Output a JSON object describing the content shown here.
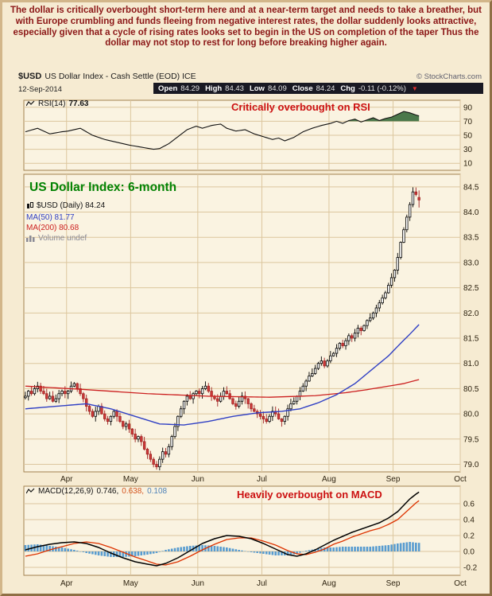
{
  "annotation": {
    "text": "The dollar is critically overbought short-term here and at a near-term target and needs to take a breather, but with Europe crumbling and funds fleeing from negative interest rates, the dollar suddenly looks attractive, especially given that a cycle of rising rates looks set to begin in the US on completion of the taper Thus the dollar may not stop to rest for long before breaking higher again."
  },
  "header": {
    "symbol": "$USD",
    "title": "US Dollar Index - Cash Settle (EOD) ICE",
    "source": "© StockCharts.com",
    "date": "12-Sep-2014",
    "quote": {
      "open_label": "Open",
      "open": "84.29",
      "high_label": "High",
      "high": "84.43",
      "low_label": "Low",
      "low": "84.09",
      "close_label": "Close",
      "close": "84.24",
      "chg_label": "Chg",
      "chg": "-0.11 (-0.12%)"
    }
  },
  "icons": {
    "down_triangle": "▼",
    "indicator_line": "zigzag-line",
    "candlestick": "mini-candles",
    "volume_bars": "mini-histogram"
  },
  "rsi_panel": {
    "legend_name": "RSI(14)",
    "legend_value": "77.63",
    "annotation": "Critically overbought on RSI"
  },
  "main_panel": {
    "title": "US Dollar Index: 6-month",
    "legend_symbol": "$USD (Daily) 84.24",
    "legend_ma50": "MA(50) 81.77",
    "legend_ma200": "MA(200) 80.68",
    "legend_volume": "Volume undef"
  },
  "macd_panel": {
    "legend_name": "MACD(12,26,9)",
    "values": [
      "0.746,",
      "0.638,",
      "0.108"
    ],
    "annotation": "Heavily overbought on MACD"
  },
  "colors": {
    "annotation_text": "#8b1616",
    "alert_red": "#cc1111",
    "title_green": "#028202",
    "page_bg": "#f6ebd2",
    "plot_bg": "#faf3e1",
    "grid": "#dcc69e",
    "plot_border": "#a3824e",
    "axis_text": "#2e2310",
    "candle_up_stroke": "#000000",
    "candle_up_fill": "#ffffff",
    "candle_down_stroke": "#a02222",
    "candle_down_fill": "#cf3a3a",
    "ma50": "#2f3fc4",
    "ma200": "#cc2020",
    "rsi_line": "#111111",
    "rsi_fill": "#3c6e3e",
    "macd_line": "#000000",
    "macd_signal": "#dd3300",
    "macd_hist": "#4f97cf",
    "quote_bar_bg": "#191923"
  },
  "chart_data": {
    "type": "candlestick",
    "title": "US Dollar Index: 6-month",
    "x_months": [
      "Apr",
      "May",
      "Jun",
      "Jul",
      "Aug",
      "Sep",
      "Oct"
    ],
    "month_boundary_slots": [
      14,
      35,
      57,
      78,
      100,
      121,
      143
    ],
    "total_slots": 143,
    "data_days": 130,
    "price": {
      "ylabel_side": "right",
      "ylim": [
        78.85,
        84.75
      ],
      "yticks": [
        84.5,
        84.0,
        83.5,
        83.0,
        82.5,
        82.0,
        81.5,
        81.0,
        80.5,
        80.0,
        79.5,
        79.0
      ],
      "closes": [
        80.35,
        80.45,
        80.4,
        80.5,
        80.55,
        80.45,
        80.4,
        80.3,
        80.35,
        80.25,
        80.3,
        80.4,
        80.45,
        80.4,
        80.45,
        80.55,
        80.6,
        80.5,
        80.4,
        80.3,
        80.15,
        80.05,
        79.95,
        80.05,
        80.15,
        80.0,
        79.9,
        79.85,
        79.95,
        80.05,
        79.95,
        79.85,
        79.75,
        79.8,
        79.7,
        79.6,
        79.5,
        79.55,
        79.45,
        79.3,
        79.2,
        79.1,
        79.0,
        78.95,
        79.1,
        79.25,
        79.2,
        79.35,
        79.55,
        79.75,
        79.95,
        80.1,
        80.25,
        80.35,
        80.3,
        80.4,
        80.45,
        80.4,
        80.5,
        80.55,
        80.45,
        80.35,
        80.3,
        80.25,
        80.35,
        80.45,
        80.4,
        80.3,
        80.2,
        80.15,
        80.25,
        80.35,
        80.3,
        80.2,
        80.1,
        80.05,
        80.0,
        79.95,
        79.9,
        79.85,
        79.95,
        80.05,
        80.0,
        79.9,
        79.85,
        79.95,
        80.1,
        80.2,
        80.25,
        80.35,
        80.45,
        80.55,
        80.65,
        80.75,
        80.8,
        80.9,
        81.0,
        81.05,
        80.95,
        81.05,
        81.15,
        81.2,
        81.3,
        81.4,
        81.35,
        81.45,
        81.55,
        81.5,
        81.6,
        81.7,
        81.65,
        81.75,
        81.85,
        81.9,
        82.0,
        82.1,
        82.2,
        82.3,
        82.4,
        82.55,
        82.7,
        82.85,
        83.1,
        83.4,
        83.65,
        83.9,
        84.15,
        84.4,
        84.35,
        84.24
      ],
      "last_ohlc": {
        "open": 84.29,
        "high": 84.43,
        "low": 84.09,
        "close": 84.24,
        "change": "-0.11 (-0.12%)"
      },
      "ma50_last": 81.77,
      "ma50_keypoints": [
        [
          0,
          80.1
        ],
        [
          10,
          80.15
        ],
        [
          20,
          80.2
        ],
        [
          28,
          80.1
        ],
        [
          36,
          79.95
        ],
        [
          44,
          79.8
        ],
        [
          52,
          79.78
        ],
        [
          60,
          79.85
        ],
        [
          68,
          79.95
        ],
        [
          76,
          80.02
        ],
        [
          84,
          80.05
        ],
        [
          90,
          80.1
        ],
        [
          96,
          80.22
        ],
        [
          102,
          80.38
        ],
        [
          108,
          80.6
        ],
        [
          114,
          80.9
        ],
        [
          119,
          81.15
        ],
        [
          123,
          81.4
        ],
        [
          126,
          81.58
        ],
        [
          129,
          81.77
        ]
      ],
      "ma200_last": 80.68,
      "ma200_keypoints": [
        [
          0,
          80.55
        ],
        [
          20,
          80.48
        ],
        [
          40,
          80.4
        ],
        [
          60,
          80.35
        ],
        [
          80,
          80.33
        ],
        [
          95,
          80.36
        ],
        [
          105,
          80.42
        ],
        [
          112,
          80.48
        ],
        [
          118,
          80.54
        ],
        [
          124,
          80.6
        ],
        [
          129,
          80.68
        ]
      ]
    },
    "rsi": {
      "period": 14,
      "last": 77.63,
      "overbought_level": 70,
      "ylim": [
        0,
        100
      ],
      "yticks": [
        90,
        70,
        50,
        30,
        10
      ],
      "keypoints": [
        [
          0,
          55
        ],
        [
          4,
          60
        ],
        [
          8,
          52
        ],
        [
          12,
          55
        ],
        [
          14,
          56
        ],
        [
          18,
          60
        ],
        [
          22,
          50
        ],
        [
          26,
          44
        ],
        [
          30,
          40
        ],
        [
          34,
          36
        ],
        [
          38,
          33
        ],
        [
          42,
          30
        ],
        [
          44,
          31
        ],
        [
          47,
          38
        ],
        [
          50,
          48
        ],
        [
          53,
          58
        ],
        [
          56,
          63
        ],
        [
          58,
          60
        ],
        [
          61,
          64
        ],
        [
          64,
          66
        ],
        [
          66,
          60
        ],
        [
          69,
          56
        ],
        [
          72,
          58
        ],
        [
          75,
          52
        ],
        [
          78,
          48
        ],
        [
          81,
          44
        ],
        [
          83,
          46
        ],
        [
          85,
          42
        ],
        [
          88,
          47
        ],
        [
          91,
          55
        ],
        [
          94,
          60
        ],
        [
          97,
          64
        ],
        [
          100,
          67
        ],
        [
          102,
          70
        ],
        [
          104,
          67
        ],
        [
          106,
          71
        ],
        [
          108,
          73
        ],
        [
          110,
          69
        ],
        [
          112,
          72
        ],
        [
          114,
          75
        ],
        [
          116,
          71
        ],
        [
          118,
          74
        ],
        [
          120,
          76
        ],
        [
          122,
          80
        ],
        [
          124,
          84
        ],
        [
          126,
          82
        ],
        [
          128,
          79
        ],
        [
          129,
          77.63
        ]
      ]
    },
    "macd": {
      "params": [
        12,
        26,
        9
      ],
      "last": {
        "macd": 0.746,
        "signal": 0.638,
        "hist": 0.108
      },
      "ylim": [
        -0.3,
        0.82
      ],
      "yticks": [
        0.6,
        0.4,
        0.2,
        0.0,
        -0.2
      ],
      "macd_keypoints": [
        [
          0,
          0.02
        ],
        [
          4,
          0.06
        ],
        [
          8,
          0.09
        ],
        [
          12,
          0.11
        ],
        [
          16,
          0.12
        ],
        [
          20,
          0.1
        ],
        [
          24,
          0.05
        ],
        [
          28,
          -0.02
        ],
        [
          32,
          -0.08
        ],
        [
          36,
          -0.13
        ],
        [
          40,
          -0.16
        ],
        [
          43,
          -0.18
        ],
        [
          46,
          -0.15
        ],
        [
          50,
          -0.08
        ],
        [
          54,
          0.01
        ],
        [
          58,
          0.1
        ],
        [
          62,
          0.16
        ],
        [
          66,
          0.2
        ],
        [
          70,
          0.19
        ],
        [
          74,
          0.16
        ],
        [
          78,
          0.1
        ],
        [
          82,
          0.03
        ],
        [
          86,
          -0.04
        ],
        [
          89,
          -0.06
        ],
        [
          92,
          -0.03
        ],
        [
          95,
          0.02
        ],
        [
          98,
          0.08
        ],
        [
          101,
          0.14
        ],
        [
          104,
          0.19
        ],
        [
          107,
          0.24
        ],
        [
          110,
          0.28
        ],
        [
          113,
          0.32
        ],
        [
          116,
          0.36
        ],
        [
          119,
          0.42
        ],
        [
          122,
          0.5
        ],
        [
          124,
          0.58
        ],
        [
          126,
          0.66
        ],
        [
          128,
          0.72
        ],
        [
          129,
          0.746
        ]
      ],
      "hist_keypoints": [
        [
          0,
          0.08
        ],
        [
          4,
          0.09
        ],
        [
          8,
          0.07
        ],
        [
          12,
          0.05
        ],
        [
          16,
          0.02
        ],
        [
          20,
          -0.02
        ],
        [
          24,
          -0.05
        ],
        [
          28,
          -0.07
        ],
        [
          32,
          -0.07
        ],
        [
          36,
          -0.06
        ],
        [
          40,
          -0.04
        ],
        [
          43,
          -0.02
        ],
        [
          46,
          0.02
        ],
        [
          50,
          0.05
        ],
        [
          54,
          0.07
        ],
        [
          58,
          0.08
        ],
        [
          62,
          0.07
        ],
        [
          66,
          0.05
        ],
        [
          70,
          0.02
        ],
        [
          74,
          -0.01
        ],
        [
          78,
          -0.03
        ],
        [
          82,
          -0.05
        ],
        [
          86,
          -0.05
        ],
        [
          89,
          -0.03
        ],
        [
          92,
          0.01
        ],
        [
          95,
          0.03
        ],
        [
          98,
          0.05
        ],
        [
          101,
          0.05
        ],
        [
          104,
          0.06
        ],
        [
          107,
          0.06
        ],
        [
          110,
          0.06
        ],
        [
          113,
          0.06
        ],
        [
          116,
          0.07
        ],
        [
          119,
          0.08
        ],
        [
          122,
          0.1
        ],
        [
          124,
          0.11
        ],
        [
          126,
          0.12
        ],
        [
          128,
          0.11
        ],
        [
          129,
          0.108
        ]
      ]
    }
  }
}
